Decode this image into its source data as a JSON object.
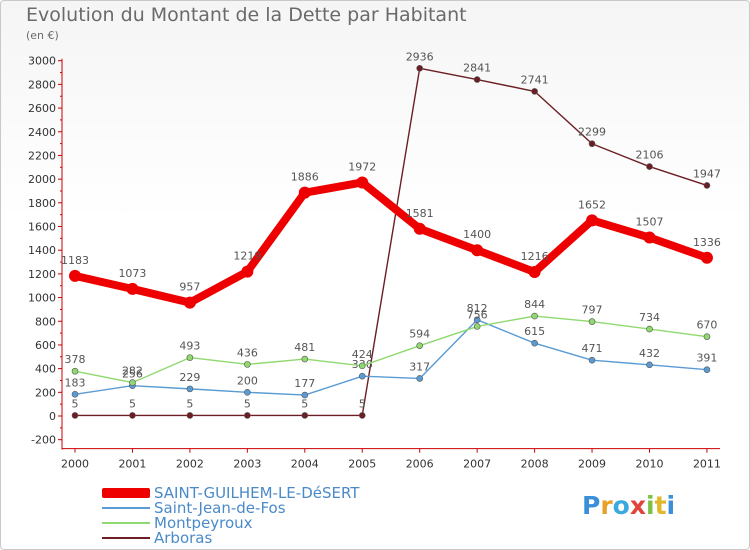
{
  "chart_data": {
    "type": "line",
    "title": "Evolution du Montant de la Dette par Habitant",
    "subtitle": "(en €)",
    "categories": [
      "2000",
      "2001",
      "2002",
      "2003",
      "2004",
      "2005",
      "2006",
      "2007",
      "2008",
      "2009",
      "2010",
      "2011"
    ],
    "ylim": [
      -200,
      3000
    ],
    "yticks": [
      -200,
      0,
      200,
      400,
      600,
      800,
      1000,
      1200,
      1400,
      1600,
      1800,
      2000,
      2200,
      2400,
      2600,
      2800,
      3000
    ],
    "grid": false,
    "legend_position": "bottom-left",
    "series": [
      {
        "name": "Arboras",
        "color": "#6b1e24",
        "values": [
          5,
          5,
          5,
          5,
          5,
          5,
          2936,
          2841,
          2741,
          2299,
          2106,
          1947
        ]
      },
      {
        "name": "Saint-Jean-de-Fos",
        "color": "#5a9bd4",
        "values": [
          183,
          256,
          229,
          200,
          177,
          336,
          317,
          812,
          615,
          471,
          432,
          391
        ]
      },
      {
        "name": "Montpeyroux",
        "color": "#8fd96e",
        "values": [
          378,
          282,
          493,
          436,
          481,
          424,
          594,
          756,
          844,
          797,
          734,
          670
        ]
      },
      {
        "name": "SAINT-GUILHEM-LE-DéSERT",
        "color": "#ee0000",
        "values": [
          1183,
          1073,
          957,
          1219,
          1886,
          1972,
          1581,
          1400,
          1216,
          1652,
          1507,
          1336
        ]
      }
    ]
  },
  "legend": [
    {
      "label": "SAINT-GUILHEM-LE-DéSERT",
      "color": "#ee0000"
    },
    {
      "label": "Saint-Jean-de-Fos",
      "color": "#5a9bd4"
    },
    {
      "label": "Montpeyroux",
      "color": "#8fd96e"
    },
    {
      "label": "Arboras",
      "color": "#6b1e24"
    }
  ],
  "logo": {
    "text": "Proxiti"
  }
}
